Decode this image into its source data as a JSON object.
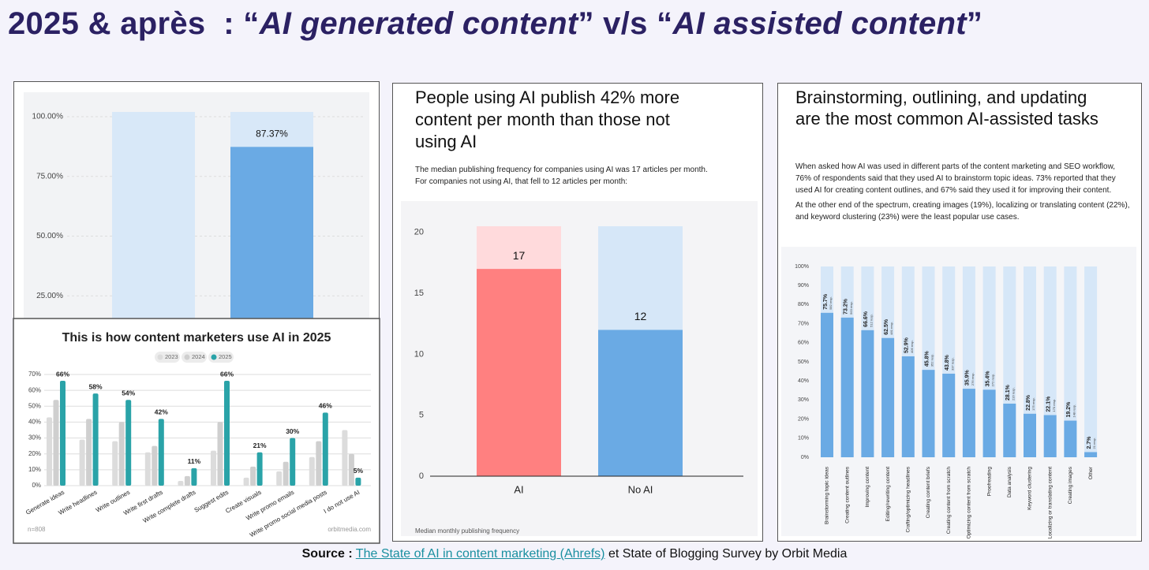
{
  "title": {
    "parts": [
      "2025 & après  : “",
      "AI generated content",
      "” v/s “",
      "AI assisted content",
      "”"
    ]
  },
  "source": {
    "label": "Source :",
    "link": "The State of AI in content marketing (Ahrefs)",
    "rest": "et State of Blogging Survey by Orbit Media"
  },
  "chart_data": [
    {
      "type": "bar",
      "categories": [
        null,
        null
      ],
      "values": [
        null,
        87.37
      ],
      "value_labels": [
        null,
        "87.37%"
      ],
      "color": "#6aaae4",
      "track_color": "#d8e8f8",
      "ylim": [
        0,
        102
      ],
      "yticks": [
        {
          "value": 25,
          "label": "25.00%"
        },
        {
          "value": 50,
          "label": "50.00%"
        },
        {
          "value": 75,
          "label": "75.00%"
        },
        {
          "value": 100,
          "label": "100.00%"
        }
      ],
      "grid": true
    },
    {
      "type": "bar",
      "title": "This is how content marketers use AI in 2025",
      "categories": [
        "Generate ideas",
        "Write headlines",
        "Write outlines",
        "Write first drafts",
        "Write complete drafts",
        "Suggest edits",
        "Create visuals",
        "Write promo emails",
        "Write promo social media posts",
        "I do not use AI"
      ],
      "series": [
        {
          "name": "2023",
          "color": "#dcdcdc",
          "values": [
            43,
            29,
            28,
            21,
            3,
            22,
            5,
            9,
            18,
            35
          ]
        },
        {
          "name": "2024",
          "color": "#cfcfcf",
          "values": [
            54,
            42,
            40,
            25,
            6,
            40,
            12,
            15,
            28,
            20
          ]
        },
        {
          "name": "2025",
          "color": "#2aa3a8",
          "values": [
            66,
            58,
            54,
            42,
            11,
            66,
            21,
            30,
            46,
            5
          ],
          "value_labels": [
            "66%",
            "58%",
            "54%",
            "42%",
            "11%",
            "66%",
            "21%",
            "30%",
            "46%",
            "5%"
          ]
        }
      ],
      "ylim": [
        0,
        70
      ],
      "yticks": [
        {
          "value": 0,
          "label": "0%"
        },
        {
          "value": 10,
          "label": "10%"
        },
        {
          "value": 20,
          "label": "20%"
        },
        {
          "value": 30,
          "label": "30%"
        },
        {
          "value": 40,
          "label": "40%"
        },
        {
          "value": 50,
          "label": "50%"
        },
        {
          "value": 60,
          "label": "60%"
        },
        {
          "value": 70,
          "label": "70%"
        }
      ],
      "grid": true,
      "note": "n=808",
      "credit": "orbitmedia.com"
    },
    {
      "type": "bar",
      "title": "People using AI publish 42% more content per month than those not using AI",
      "subtitle": "The median publishing frequency for companies using AI was 17 articles per month. For companies not using AI, that fell to 12 articles per month:",
      "categories": [
        "AI",
        "No AI"
      ],
      "values": [
        17,
        12
      ],
      "colors": [
        "#ff8080",
        "#6aaae4"
      ],
      "track_colors": [
        "#ffdadc",
        "#d6e7f8"
      ],
      "ylim": [
        0,
        20.5
      ],
      "yticks": [
        0,
        5,
        10,
        15,
        20
      ],
      "grid": false,
      "note": "Median monthly publishing frequency"
    },
    {
      "type": "bar",
      "title": "Brainstorming, outlining, and updating are the most common AI-assisted tasks",
      "paragraphs": [
        "When asked how AI was used in different parts of the content marketing and SEO workflow, 76% of respondents said that they used AI to brainstorm topic ideas. 73% reported that they used AI for creating content outlines, and 67% said they used it for improving their content.",
        "At the other end of the spectrum, creating images (19%), localizing or translating content (22%), and keyword clustering (23%) were the least popular use cases."
      ],
      "categories": [
        "Brainstorming topic ideas",
        "Creating content outlines",
        "Improving content",
        "Editing/rewriting content",
        "Crafting/optimizing headlines",
        "Creating content briefs",
        "Creating content from scratch",
        "Optimizing content from scratch",
        "Proofreading",
        "Data analysis",
        "Keyword clustering",
        "Localizing or translating content",
        "Creating images",
        "Other"
      ],
      "values": [
        75.7,
        73.2,
        66.6,
        62.5,
        52.9,
        45.8,
        43.8,
        35.9,
        35.4,
        28.1,
        22.8,
        22.1,
        19.2,
        2.7
      ],
      "value_labels": [
        "75.7%",
        "73.2%",
        "66.6%",
        "62.5%",
        "52.9%",
        "45.8%",
        "43.8%",
        "35.9%",
        "35.4%",
        "28.1%",
        "22.8%",
        "22.1%",
        "19.2%",
        "2.7%"
      ],
      "responses": [
        "582 resp.",
        "563 resp.",
        "512 resp.",
        "481 resp.",
        "406 resp.",
        "352 resp.",
        "337 resp.",
        "276 resp.",
        "272 resp.",
        "216 resp.",
        "175 resp.",
        "170 resp.",
        "148 resp.",
        "21 resp."
      ],
      "color": "#6aaae4",
      "track_color": "#d6e7f8",
      "ylim": [
        0,
        100
      ],
      "yticks": [
        {
          "value": 0,
          "label": "0%"
        },
        {
          "value": 10,
          "label": "10%"
        },
        {
          "value": 20,
          "label": "20%"
        },
        {
          "value": 30,
          "label": "30%"
        },
        {
          "value": 40,
          "label": "40%"
        },
        {
          "value": 50,
          "label": "50%"
        },
        {
          "value": 60,
          "label": "60%"
        },
        {
          "value": 70,
          "label": "70%"
        },
        {
          "value": 80,
          "label": "80%"
        },
        {
          "value": 90,
          "label": "90%"
        },
        {
          "value": 100,
          "label": "100%"
        }
      ],
      "grid": false
    }
  ]
}
